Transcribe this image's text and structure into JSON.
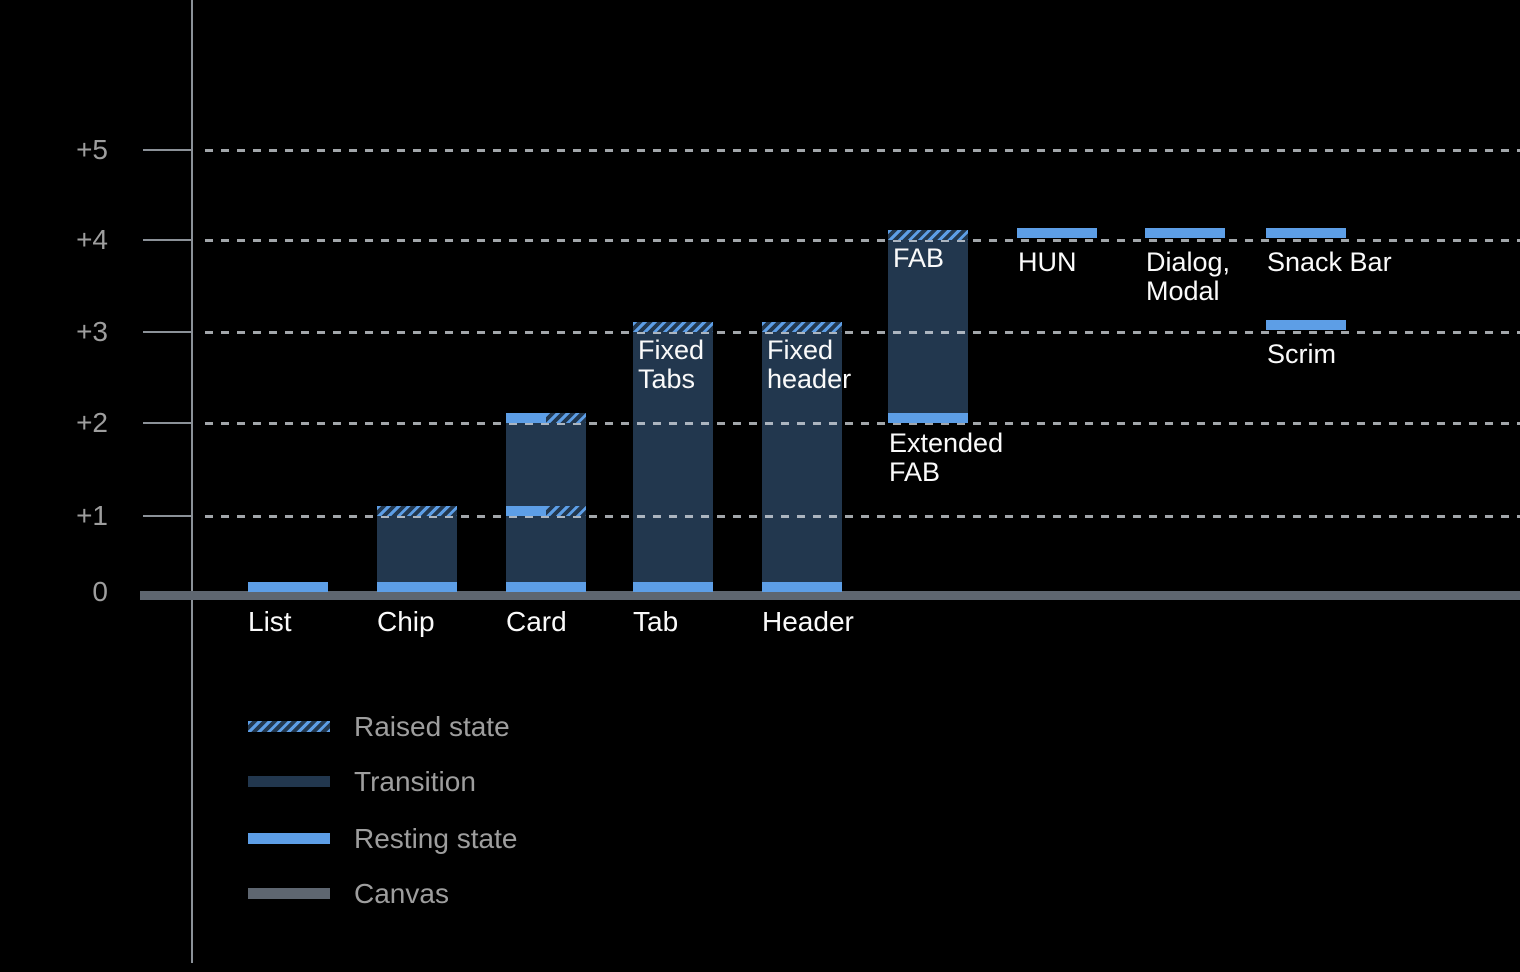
{
  "chart_data": {
    "type": "bar",
    "ylim": [
      0,
      5
    ],
    "grid": "dotted-horizontal",
    "legend_position": "bottom-left",
    "yticks": [
      {
        "label": "+5",
        "value": 5
      },
      {
        "label": "+4",
        "value": 4
      },
      {
        "label": "+3",
        "value": 3
      },
      {
        "label": "+2",
        "value": 2
      },
      {
        "label": "+1",
        "value": 1
      },
      {
        "label": "0",
        "value": 0
      }
    ],
    "legend": [
      {
        "kind": "raised",
        "label": "Raised state"
      },
      {
        "kind": "transition",
        "label": "Transition"
      },
      {
        "kind": "resting",
        "label": "Resting state"
      },
      {
        "kind": "canvas",
        "label": "Canvas"
      }
    ],
    "bars": [
      {
        "id": "list",
        "axis_label": "List",
        "parts": [
          {
            "kind": "resting",
            "at": 0
          }
        ]
      },
      {
        "id": "chip",
        "axis_label": "Chip",
        "parts": [
          {
            "kind": "transition",
            "from": 0,
            "to": 1
          },
          {
            "kind": "resting",
            "at": 0
          },
          {
            "kind": "raised",
            "at": 1
          }
        ]
      },
      {
        "id": "card",
        "axis_label": "Card",
        "parts": [
          {
            "kind": "transition",
            "from": 0,
            "to": 2
          },
          {
            "kind": "resting",
            "at": 0
          },
          {
            "kind": "split",
            "at": 1
          },
          {
            "kind": "split",
            "at": 2
          }
        ]
      },
      {
        "id": "tab",
        "axis_label": "Tab",
        "bar_label": [
          "Fixed",
          "Tabs"
        ],
        "bar_label_at": 3,
        "parts": [
          {
            "kind": "transition",
            "from": 0,
            "to": 3
          },
          {
            "kind": "resting",
            "at": 0
          },
          {
            "kind": "raised",
            "at": 3
          }
        ]
      },
      {
        "id": "header",
        "axis_label": "Header",
        "bar_label": [
          "Fixed",
          "header"
        ],
        "bar_label_at": 3,
        "parts": [
          {
            "kind": "transition",
            "from": 0,
            "to": 3
          },
          {
            "kind": "resting",
            "at": 0
          },
          {
            "kind": "raised",
            "at": 3
          }
        ]
      },
      {
        "id": "extended-fab",
        "bar_label": [
          "FAB"
        ],
        "bar_label_at": 4,
        "below_label": {
          "lines": [
            "Extended",
            "FAB"
          ],
          "at": 2
        },
        "parts": [
          {
            "kind": "transition",
            "from": 2,
            "to": 4
          },
          {
            "kind": "resting",
            "at": 2
          },
          {
            "kind": "raised",
            "at": 4
          }
        ]
      },
      {
        "id": "hun",
        "below_label": {
          "lines": [
            "HUN"
          ],
          "at": 4
        },
        "parts": [
          {
            "kind": "resting",
            "at": 4
          }
        ]
      },
      {
        "id": "dialog-modal",
        "below_label": {
          "lines": [
            "Dialog,",
            "Modal"
          ],
          "at": 4
        },
        "parts": [
          {
            "kind": "resting",
            "at": 4
          }
        ]
      },
      {
        "id": "snack-bar",
        "below_label": {
          "lines": [
            "Snack Bar"
          ],
          "at": 4
        },
        "parts": [
          {
            "kind": "resting",
            "at": 4
          }
        ]
      },
      {
        "id": "scrim",
        "below_label": {
          "lines": [
            "Scrim"
          ],
          "at": 3
        },
        "parts": [
          {
            "kind": "resting",
            "at": 3
          }
        ]
      }
    ]
  },
  "colors": {
    "background": "#000000",
    "resting": "#5d9ee6",
    "transition": "#22374e",
    "canvas": "#5e6670",
    "axis": "#8b9198",
    "grid_dash": "#e1e6ec",
    "tick_label": "#9e9e9e",
    "component_label": "#fafafa"
  }
}
